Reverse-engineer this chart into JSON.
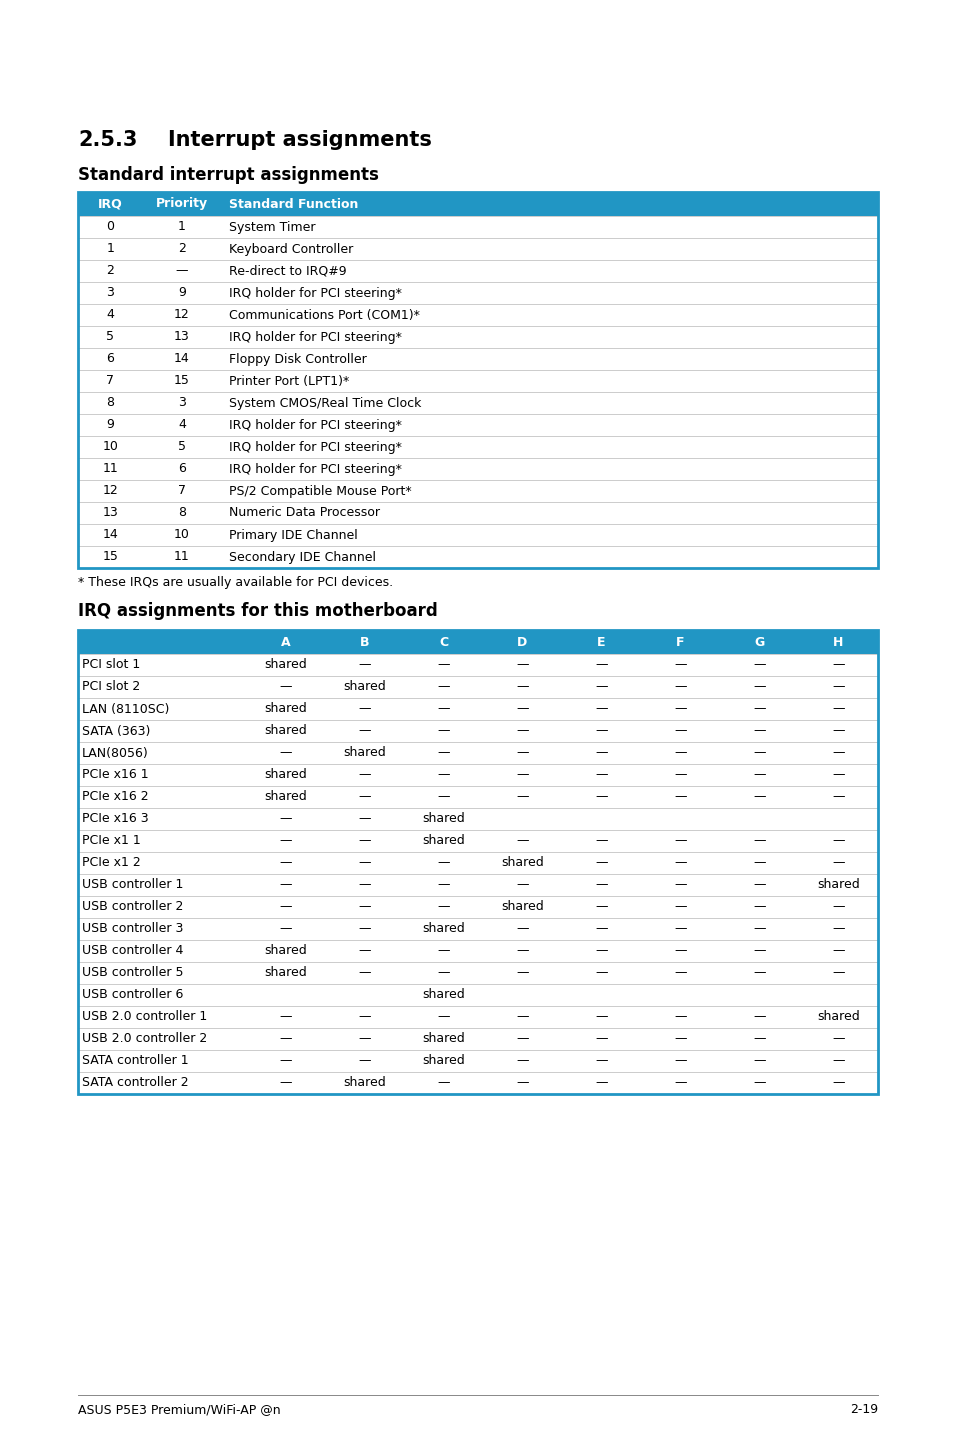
{
  "title1": "2.5.3",
  "title1b": "Interrupt assignments",
  "title2": "Standard interrupt assignments",
  "header_bg": "#2196C4",
  "header_text_color": "#FFFFFF",
  "border_color": "#2196C4",
  "table1_headers": [
    "IRQ",
    "Priority",
    "Standard Function"
  ],
  "table1_rows": [
    [
      "0",
      "1",
      "System Timer"
    ],
    [
      "1",
      "2",
      "Keyboard Controller"
    ],
    [
      "2",
      "—",
      "Re-direct to IRQ#9"
    ],
    [
      "3",
      "9",
      "IRQ holder for PCI steering*"
    ],
    [
      "4",
      "12",
      "Communications Port (COM1)*"
    ],
    [
      "5",
      "13",
      "IRQ holder for PCI steering*"
    ],
    [
      "6",
      "14",
      "Floppy Disk Controller"
    ],
    [
      "7",
      "15",
      "Printer Port (LPT1)*"
    ],
    [
      "8",
      "3",
      "System CMOS/Real Time Clock"
    ],
    [
      "9",
      "4",
      "IRQ holder for PCI steering*"
    ],
    [
      "10",
      "5",
      "IRQ holder for PCI steering*"
    ],
    [
      "11",
      "6",
      "IRQ holder for PCI steering*"
    ],
    [
      "12",
      "7",
      "PS/2 Compatible Mouse Port*"
    ],
    [
      "13",
      "8",
      "Numeric Data Processor"
    ],
    [
      "14",
      "10",
      "Primary IDE Channel"
    ],
    [
      "15",
      "11",
      "Secondary IDE Channel"
    ]
  ],
  "footnote": "* These IRQs are usually available for PCI devices.",
  "title3": "IRQ assignments for this motherboard",
  "table2_headers": [
    "",
    "A",
    "B",
    "C",
    "D",
    "E",
    "F",
    "G",
    "H"
  ],
  "table2_rows": [
    [
      "PCI slot 1",
      "shared",
      "—",
      "—",
      "—",
      "—",
      "—",
      "—",
      "—"
    ],
    [
      "PCI slot 2",
      "—",
      "shared",
      "—",
      "—",
      "—",
      "—",
      "—",
      "—"
    ],
    [
      "LAN (8110SC)",
      "shared",
      "—",
      "—",
      "—",
      "—",
      "—",
      "—",
      "—"
    ],
    [
      "SATA (363)",
      "shared",
      "—",
      "—",
      "—",
      "—",
      "—",
      "—",
      "—"
    ],
    [
      "LAN(8056)",
      "—",
      "shared",
      "—",
      "—",
      "—",
      "—",
      "—",
      "—"
    ],
    [
      "PCIe x16 1",
      "shared",
      "—",
      "—",
      "—",
      "—",
      "—",
      "—",
      "—"
    ],
    [
      "PCIe x16 2",
      "shared",
      "—",
      "—",
      "—",
      "—",
      "—",
      "—",
      "—"
    ],
    [
      "PCIe x16 3",
      "—",
      "—",
      "shared",
      "",
      "",
      "",
      "",
      ""
    ],
    [
      "PCIe x1 1",
      "—",
      "—",
      "shared",
      "—",
      "—",
      "—",
      "—",
      "—"
    ],
    [
      "PCIe x1 2",
      "—",
      "—",
      "—",
      "shared",
      "—",
      "—",
      "—",
      "—"
    ],
    [
      "USB controller 1",
      "—",
      "—",
      "—",
      "—",
      "—",
      "—",
      "—",
      "shared"
    ],
    [
      "USB controller 2",
      "—",
      "—",
      "—",
      "shared",
      "—",
      "—",
      "—",
      "—"
    ],
    [
      "USB controller 3",
      "—",
      "—",
      "shared",
      "—",
      "—",
      "—",
      "—",
      "—"
    ],
    [
      "USB controller 4",
      "shared",
      "—",
      "—",
      "—",
      "—",
      "—",
      "—",
      "—"
    ],
    [
      "USB controller 5",
      "shared",
      "—",
      "—",
      "—",
      "—",
      "—",
      "—",
      "—"
    ],
    [
      "USB controller 6",
      "",
      "",
      "shared",
      "",
      "",
      "",
      "",
      ""
    ],
    [
      "USB 2.0 controller 1",
      "—",
      "—",
      "—",
      "—",
      "—",
      "—",
      "—",
      "shared"
    ],
    [
      "USB 2.0 controller 2",
      "—",
      "—",
      "shared",
      "—",
      "—",
      "—",
      "—",
      "—"
    ],
    [
      "SATA controller 1",
      "—",
      "—",
      "shared",
      "—",
      "—",
      "—",
      "—",
      "—"
    ],
    [
      "SATA controller 2",
      "—",
      "shared",
      "—",
      "—",
      "—",
      "—",
      "—",
      "—"
    ]
  ],
  "footer_text": "ASUS P5E3 Premium/WiFi-AP @n",
  "footer_page": "2-19",
  "bg_color": "#FFFFFF",
  "divider_color": "#CCCCCC"
}
